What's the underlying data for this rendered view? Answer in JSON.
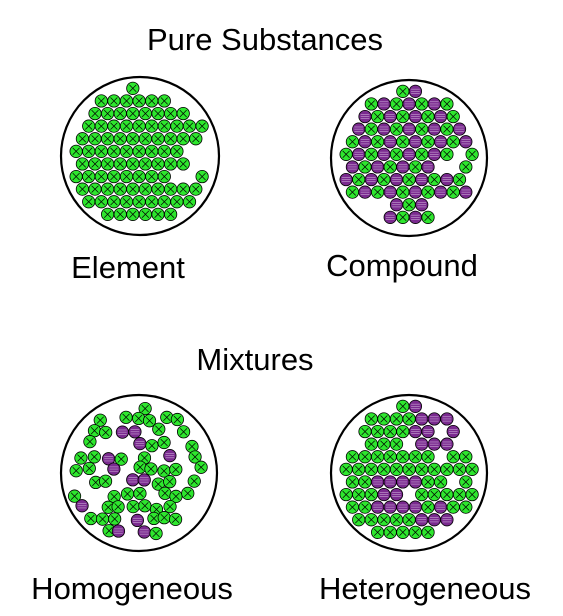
{
  "headings": {
    "pure": "Pure Substances",
    "mixtures": "Mixtures"
  },
  "panels": [
    {
      "key": "element",
      "label": "Element",
      "mode": "element"
    },
    {
      "key": "compound",
      "label": "Compound",
      "mode": "compound"
    },
    {
      "key": "homogeneous",
      "label": "Homogeneous",
      "mode": "homogeneous"
    },
    {
      "key": "heterogeneous",
      "label": "Heterogeneous",
      "mode": "heterogeneous"
    }
  ],
  "colors": {
    "green": "#2ee62e",
    "purple": "#7a2a8f",
    "outline": "#000000",
    "background": "#ffffff"
  }
}
